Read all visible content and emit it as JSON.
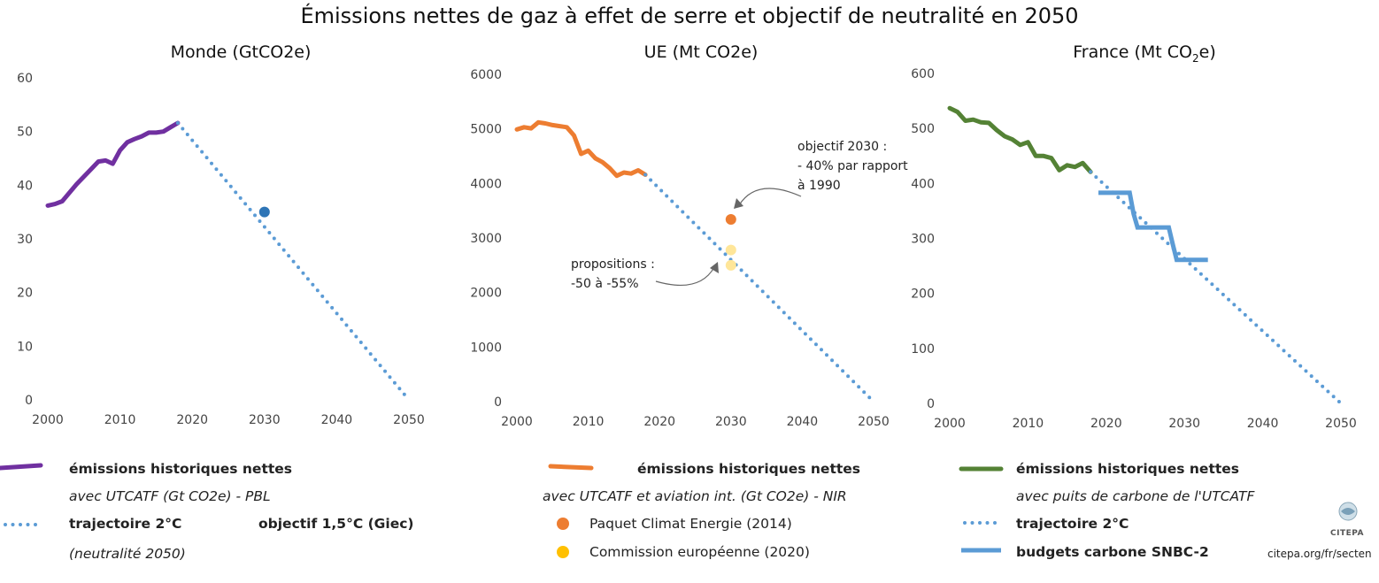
{
  "title": "Émissions nettes de gaz à effet de serre et objectif de neutralité en 2050",
  "credit": "citepa.org/fr/secten",
  "logo_text": "CITEPA",
  "colors": {
    "world": "#7030a0",
    "eu": "#ed7d31",
    "france": "#548235",
    "trajectory": "#5b9bd5",
    "budget": "#5b9bd5",
    "goal_world": "#2e75b6",
    "paquet": "#ed7d31",
    "commission": "#ffc000",
    "commission_light": "#ffe699"
  },
  "chart_data": [
    {
      "type": "line",
      "title": "Monde (GtCO2e)",
      "xlim": [
        2000,
        2050
      ],
      "ylim": [
        0,
        60
      ],
      "xticks": [
        "2000",
        "2010",
        "2020",
        "2030",
        "2040",
        "2050"
      ],
      "yticks": [
        "0",
        "10",
        "20",
        "30",
        "40",
        "50",
        "60"
      ],
      "series": [
        {
          "name": "émissions historiques nettes avec UTCATF (Gt CO2e) - PBL",
          "style": "solid",
          "x": [
            2000,
            2001,
            2002,
            2003,
            2004,
            2005,
            2006,
            2007,
            2008,
            2009,
            2010,
            2011,
            2012,
            2013,
            2014,
            2015,
            2016,
            2017,
            2018
          ],
          "y": [
            36.2,
            36.5,
            37.0,
            38.6,
            40.2,
            41.6,
            43.0,
            44.4,
            44.6,
            44.0,
            46.5,
            48.0,
            48.6,
            49.1,
            49.8,
            49.8,
            50.0,
            50.8,
            51.6
          ]
        },
        {
          "name": "trajectoire 2°C",
          "style": "dotted",
          "x": [
            2018,
            2050
          ],
          "y": [
            51.6,
            0
          ]
        }
      ],
      "points": [
        {
          "name": "objectif 1,5°C (Giec) (neutralité 2050)",
          "x": 2030,
          "y": 35,
          "color": "#2e75b6"
        }
      ],
      "legend": [
        {
          "marker": "line",
          "text": "émissions historiques nettes",
          "bold": true
        },
        {
          "marker": "",
          "text": "avec UTCATF (Gt CO2e) - PBL",
          "italic": true
        },
        {
          "marker": "dotted",
          "text": "trajectoire 2°C",
          "bold": true
        },
        {
          "marker": "dot",
          "text": "objectif 1,5°C (Giec)",
          "bold": true
        },
        {
          "marker": "",
          "text": "(neutralité 2050)",
          "italic": true
        }
      ]
    },
    {
      "type": "line",
      "title": "UE (Mt CO2e)",
      "xlim": [
        2000,
        2050
      ],
      "ylim": [
        0,
        6000
      ],
      "xticks": [
        "2000",
        "2010",
        "2020",
        "2030",
        "2040",
        "2050"
      ],
      "yticks": [
        "0",
        "1000",
        "2000",
        "3000",
        "4000",
        "5000",
        "6000"
      ],
      "series": [
        {
          "name": "émissions historiques nettes avec UTCATF et aviation int. (Gt CO2e) - NIR",
          "style": "solid",
          "x": [
            2000,
            2001,
            2002,
            2003,
            2004,
            2005,
            2006,
            2007,
            2008,
            2009,
            2010,
            2011,
            2012,
            2013,
            2014,
            2015,
            2016,
            2017,
            2018
          ],
          "y": [
            4990,
            5030,
            5010,
            5120,
            5100,
            5070,
            5050,
            5030,
            4880,
            4540,
            4600,
            4460,
            4390,
            4280,
            4140,
            4200,
            4180,
            4240,
            4160
          ]
        },
        {
          "name": "trajectoire 2°C",
          "style": "dotted",
          "x": [
            2018,
            2050
          ],
          "y": [
            4160,
            0
          ]
        }
      ],
      "points": [
        {
          "name": "Paquet Climat Energie (2014)",
          "x": 2030,
          "y": 3340,
          "color": "#ed7d31"
        },
        {
          "name": "Commission européenne (2020)",
          "x": 2030,
          "y": 2780,
          "color": "#ffe699"
        },
        {
          "name": "Commission européenne (2020)",
          "x": 2030,
          "y": 2500,
          "color": "#ffe699"
        }
      ],
      "annotations": [
        {
          "lines": [
            "objectif 2030 :",
            "- 40% par rapport",
            "à 1990"
          ]
        },
        {
          "lines": [
            "propositions :",
            "-50 à -55%"
          ]
        }
      ],
      "legend": [
        {
          "marker": "line",
          "text": "émissions historiques nettes",
          "bold": true
        },
        {
          "marker": "",
          "text": "avec UTCATF et aviation int. (Gt CO2e) - NIR",
          "italic": true
        },
        {
          "marker": "dot",
          "text": "Paquet Climat Energie (2014)"
        },
        {
          "marker": "dot",
          "text": "Commission européenne (2020)"
        }
      ]
    },
    {
      "type": "line",
      "title_main": "France (Mt CO",
      "title_sub": "2",
      "title_tail": "e)",
      "xlim": [
        2000,
        2050
      ],
      "ylim": [
        0,
        600
      ],
      "xticks": [
        "2000",
        "2010",
        "2020",
        "2030",
        "2040",
        "2050"
      ],
      "yticks": [
        "0",
        "100",
        "200",
        "300",
        "400",
        "500",
        "600"
      ],
      "series": [
        {
          "name": "émissions historiques nettes avec puits de carbone de l'UTCATF",
          "style": "solid",
          "x": [
            2000,
            2001,
            2002,
            2003,
            2004,
            2005,
            2006,
            2007,
            2008,
            2009,
            2010,
            2011,
            2012,
            2013,
            2014,
            2015,
            2016,
            2017,
            2018
          ],
          "y": [
            537,
            530,
            514,
            516,
            511,
            510,
            497,
            486,
            480,
            470,
            475,
            450,
            450,
            446,
            424,
            433,
            430,
            437,
            421
          ]
        },
        {
          "name": "trajectoire 2°C",
          "style": "dotted",
          "x": [
            2018,
            2050
          ],
          "y": [
            421,
            0
          ]
        },
        {
          "name": "budgets carbone SNBC-2",
          "style": "step",
          "x": [
            2019,
            2023,
            2023.5,
            2024,
            2028,
            2028.5,
            2029,
            2033
          ],
          "y": [
            383,
            383,
            345,
            320,
            320,
            290,
            261,
            261
          ]
        }
      ],
      "legend": [
        {
          "marker": "line",
          "text": "émissions historiques nettes",
          "bold": true
        },
        {
          "marker": "",
          "text": "avec puits de carbone de l'UTCATF",
          "italic": true
        },
        {
          "marker": "dotted",
          "text": "trajectoire 2°C",
          "bold": true
        },
        {
          "marker": "thick",
          "text": "budgets carbone SNBC-2",
          "bold": true
        }
      ]
    }
  ]
}
